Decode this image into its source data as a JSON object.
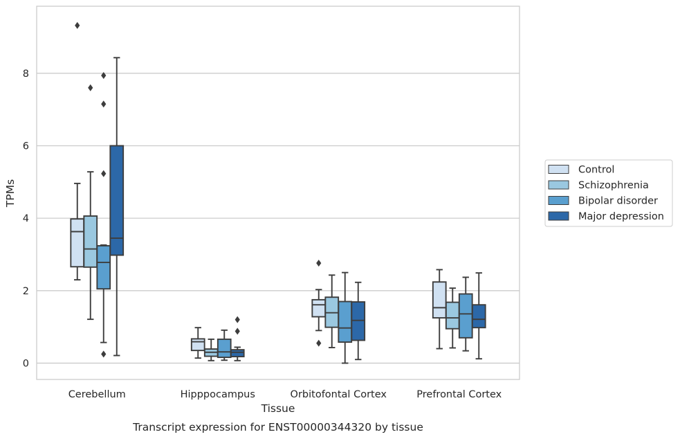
{
  "chart_data": {
    "type": "box",
    "caption": "Transcript expression for ENST00000344320 by tissue",
    "xlabel": "Tissue",
    "ylabel": "TPMs",
    "ylim": [
      -0.45,
      9.85
    ],
    "yticks": [
      0,
      2,
      4,
      6,
      8
    ],
    "grid": true,
    "legend_position": "right",
    "categories": [
      "Cerebellum",
      "Hipppocampus",
      "Orbitofontal Cortex",
      "Prefrontal Cortex"
    ],
    "series": [
      {
        "name": "Control",
        "color": "#d0e1f2",
        "boxes": [
          {
            "whisker_low": 2.3,
            "q1": 2.66,
            "median": 3.63,
            "q3": 3.98,
            "whisker_high": 4.96,
            "outliers": [
              9.32
            ]
          },
          {
            "whisker_low": 0.14,
            "q1": 0.35,
            "median": 0.59,
            "q3": 0.67,
            "whisker_high": 0.98,
            "outliers": []
          },
          {
            "whisker_low": 0.9,
            "q1": 1.28,
            "median": 1.61,
            "q3": 1.75,
            "whisker_high": 2.03,
            "outliers": [
              2.76,
              0.55
            ]
          },
          {
            "whisker_low": 0.4,
            "q1": 1.25,
            "median": 1.53,
            "q3": 2.24,
            "whisker_high": 2.58,
            "outliers": []
          }
        ]
      },
      {
        "name": "Schizophrenia",
        "color": "#9ac8e0",
        "boxes": [
          {
            "whisker_low": 1.21,
            "q1": 2.65,
            "median": 3.15,
            "q3": 4.06,
            "whisker_high": 5.28,
            "outliers": [
              7.6
            ]
          },
          {
            "whisker_low": 0.07,
            "q1": 0.19,
            "median": 0.3,
            "q3": 0.39,
            "whisker_high": 0.66,
            "outliers": []
          },
          {
            "whisker_low": 0.43,
            "q1": 0.99,
            "median": 1.39,
            "q3": 1.82,
            "whisker_high": 2.43,
            "outliers": []
          },
          {
            "whisker_low": 0.42,
            "q1": 0.95,
            "median": 1.25,
            "q3": 1.68,
            "whisker_high": 2.07,
            "outliers": []
          }
        ]
      },
      {
        "name": "Bipolar disorder",
        "color": "#5a9fcf",
        "boxes": [
          {
            "whisker_low": 0.57,
            "q1": 2.05,
            "median": 2.78,
            "q3": 3.24,
            "whisker_high": 3.26,
            "outliers": [
              7.94,
              7.15,
              5.23,
              0.25
            ]
          },
          {
            "whisker_low": 0.08,
            "q1": 0.16,
            "median": 0.31,
            "q3": 0.66,
            "whisker_high": 0.91,
            "outliers": []
          },
          {
            "whisker_low": 0.0,
            "q1": 0.58,
            "median": 0.97,
            "q3": 1.7,
            "whisker_high": 2.5,
            "outliers": []
          },
          {
            "whisker_low": 0.34,
            "q1": 0.7,
            "median": 1.36,
            "q3": 1.91,
            "whisker_high": 2.37,
            "outliers": []
          }
        ]
      },
      {
        "name": "Major depression",
        "color": "#2c68a8",
        "boxes": [
          {
            "whisker_low": 0.21,
            "q1": 2.98,
            "median": 3.45,
            "q3": 6.0,
            "whisker_high": 8.43,
            "outliers": []
          },
          {
            "whisker_low": 0.07,
            "q1": 0.18,
            "median": 0.3,
            "q3": 0.37,
            "whisker_high": 0.44,
            "outliers": [
              1.2,
              0.88
            ]
          },
          {
            "whisker_low": 0.1,
            "q1": 0.63,
            "median": 1.18,
            "q3": 1.69,
            "whisker_high": 2.23,
            "outliers": []
          },
          {
            "whisker_low": 0.12,
            "q1": 0.98,
            "median": 1.21,
            "q3": 1.61,
            "whisker_high": 2.49,
            "outliers": []
          }
        ]
      }
    ]
  }
}
